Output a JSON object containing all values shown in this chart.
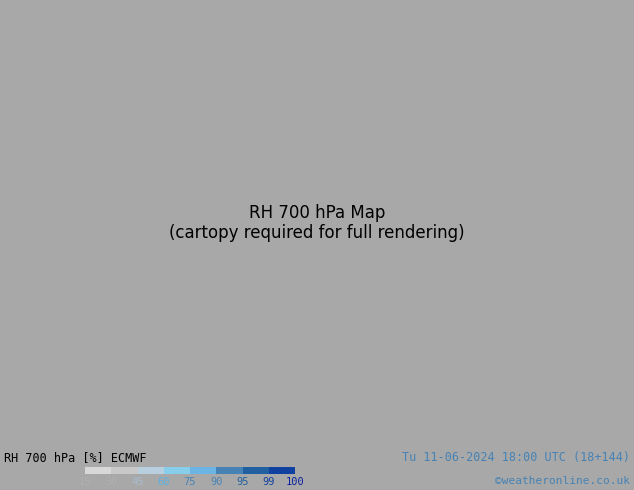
{
  "title_left": "RH 700 hPa [%] ECMWF",
  "title_right": "Tu 11-06-2024 18:00 UTC (18+144)",
  "credit": "©weatheronline.co.uk",
  "legend_values": [
    15,
    30,
    45,
    60,
    75,
    90,
    95,
    99,
    100
  ],
  "colorbar_hex": [
    "#d8d8d8",
    "#c8c8c8",
    "#b8cfe0",
    "#87ceeb",
    "#6cb4e4",
    "#4682b4",
    "#2060a0",
    "#1040a0",
    "#0820a0"
  ],
  "label_colors": [
    "#b0b0b0",
    "#b0b0b0",
    "#a8bcd0",
    "#5ab0e0",
    "#4682b4",
    "#4682b4",
    "#2060a0",
    "#1040a0",
    "#0820a0"
  ],
  "fig_width": 6.34,
  "fig_height": 4.9,
  "dpi": 100,
  "land_color": "#a8a8a8",
  "sea_base_color": "#c8dce8",
  "bottom_bg": "#ffffff",
  "text_color_left": "#000000",
  "text_color_right": "#4682b4",
  "contour_color": "#00aa00",
  "lon_min": 85,
  "lon_max": 180,
  "lat_min": -15,
  "lat_max": 55
}
